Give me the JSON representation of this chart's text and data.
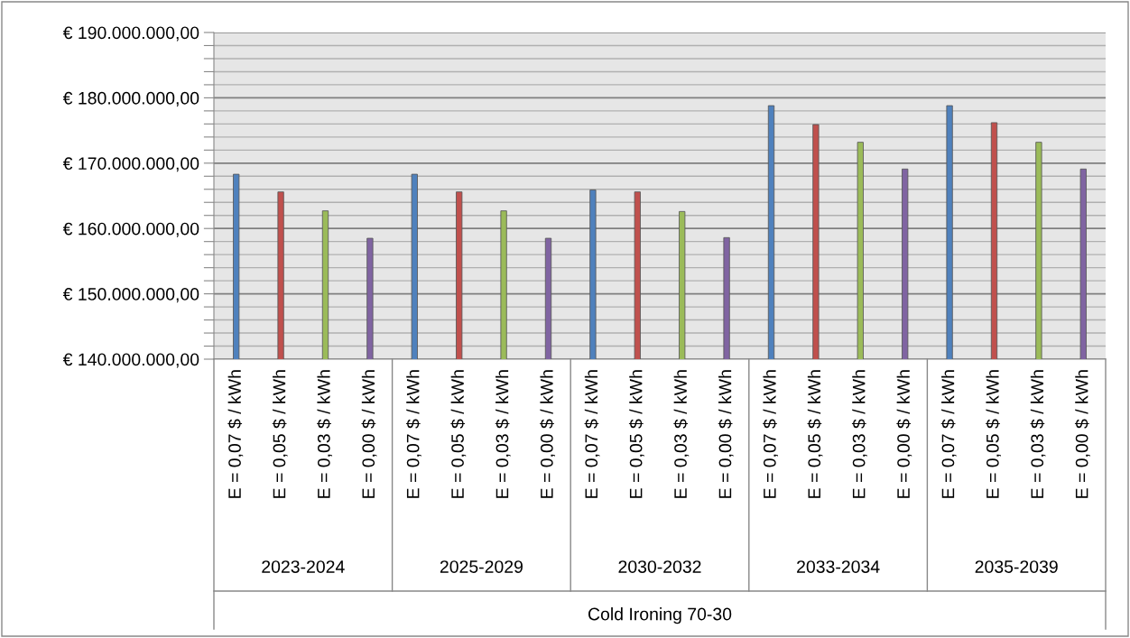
{
  "chart_data": {
    "type": "bar",
    "categories": [
      "E = 0,07 $ / kWh",
      "E = 0,05 $ / kWh",
      "E = 0,03 $ / kWh",
      "E = 0,00 $ / kWh",
      "E = 0,07 $ / kWh",
      "E = 0,05 $ / kWh",
      "E = 0,03 $ / kWh",
      "E = 0,00 $ / kWh",
      "E = 0,07 $ / kWh",
      "E = 0,05 $ / kWh",
      "E = 0,03 $ / kWh",
      "E = 0,00 $ / kWh",
      "E = 0,07 $ / kWh",
      "E = 0,05 $ / kWh",
      "E = 0,03 $ / kWh",
      "E = 0,00 $ / kWh",
      "E = 0,07 $ / kWh",
      "E = 0,05 $ / kWh",
      "E = 0,03 $ / kWh",
      "E = 0,00 $ / kWh"
    ],
    "values": [
      168300000,
      165600000,
      162700000,
      158500000,
      168300000,
      165600000,
      162700000,
      158500000,
      165900000,
      165600000,
      162600000,
      158600000,
      178800000,
      175900000,
      173200000,
      169100000,
      178800000,
      176200000,
      173200000,
      169100000
    ],
    "colors": [
      "#4f81bd",
      "#c0504d",
      "#9bbb59",
      "#8064a2",
      "#4f81bd",
      "#c0504d",
      "#9bbb59",
      "#8064a2",
      "#4f81bd",
      "#c0504d",
      "#9bbb59",
      "#8064a2",
      "#4f81bd",
      "#c0504d",
      "#9bbb59",
      "#8064a2",
      "#4f81bd",
      "#c0504d",
      "#9bbb59",
      "#8064a2"
    ],
    "annotations": [
      "2023-2024",
      "2025-2029",
      "2030-2032",
      "2033-2034",
      "2035-2039",
      "Cold Ironing 70-30"
    ],
    "ylim": [
      140000000,
      190000000
    ],
    "yticks": [
      {
        "value": 140000000,
        "label": "€ 140.000.000,00"
      },
      {
        "value": 142000000,
        "label": null
      },
      {
        "value": 144000000,
        "label": null
      },
      {
        "value": 146000000,
        "label": null
      },
      {
        "value": 148000000,
        "label": null
      },
      {
        "value": 150000000,
        "label": "€ 150.000.000,00"
      },
      {
        "value": 152000000,
        "label": null
      },
      {
        "value": 154000000,
        "label": null
      },
      {
        "value": 156000000,
        "label": null
      },
      {
        "value": 158000000,
        "label": null
      },
      {
        "value": 160000000,
        "label": "€ 160.000.000,00"
      },
      {
        "value": 162000000,
        "label": null
      },
      {
        "value": 164000000,
        "label": null
      },
      {
        "value": 166000000,
        "label": null
      },
      {
        "value": 168000000,
        "label": null
      },
      {
        "value": 170000000,
        "label": "€ 170.000.000,00"
      },
      {
        "value": 172000000,
        "label": null
      },
      {
        "value": 174000000,
        "label": null
      },
      {
        "value": 176000000,
        "label": null
      },
      {
        "value": 178000000,
        "label": null
      },
      {
        "value": 180000000,
        "label": "€ 180.000.000,00"
      },
      {
        "value": 182000000,
        "label": null
      },
      {
        "value": 184000000,
        "label": null
      },
      {
        "value": 186000000,
        "label": null
      },
      {
        "value": 188000000,
        "label": null
      },
      {
        "value": 190000000,
        "label": "€ 190.000.000,00"
      }
    ],
    "grid": "y"
  }
}
